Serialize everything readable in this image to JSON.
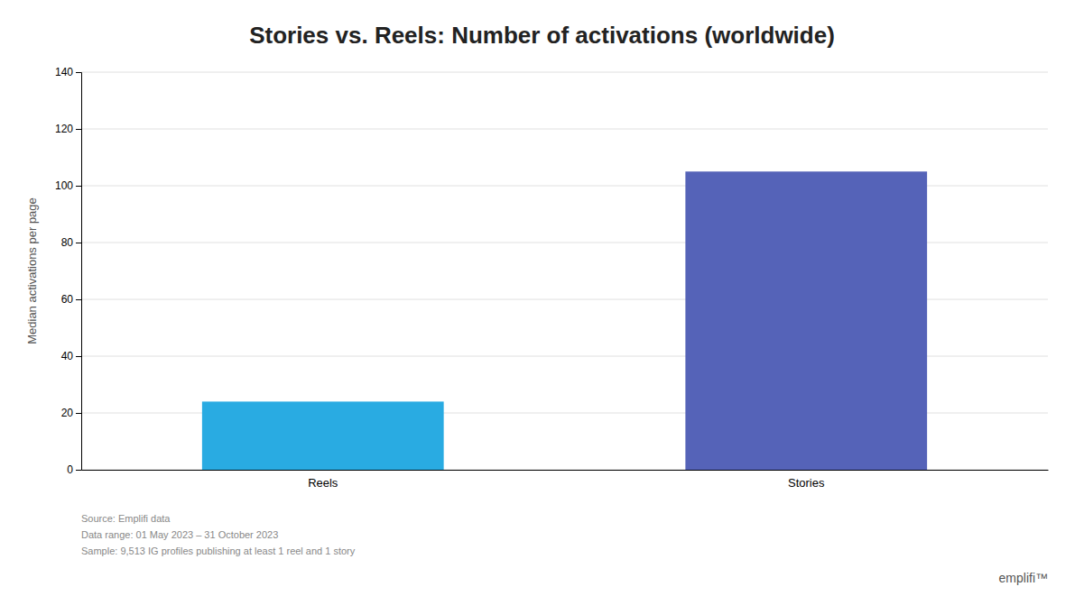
{
  "chart_data": {
    "type": "bar",
    "title": "Stories vs. Reels: Number of activations (worldwide)",
    "categories": [
      "Reels",
      "Stories"
    ],
    "values": [
      24,
      105
    ],
    "colors": [
      "#29ABE2",
      "#5563B8"
    ],
    "ylabel": "Median activations per page",
    "ylim": [
      0,
      140
    ],
    "yticks": [
      0,
      20,
      40,
      60,
      80,
      100,
      120,
      140
    ],
    "grid": true,
    "annotations": [
      "Source: Emplifi data",
      "Data range: 01 May 2023 – 31 October 2023",
      "Sample: 9,513 IG profiles publishing at least 1 reel and 1 story",
      "emplifi™"
    ]
  }
}
